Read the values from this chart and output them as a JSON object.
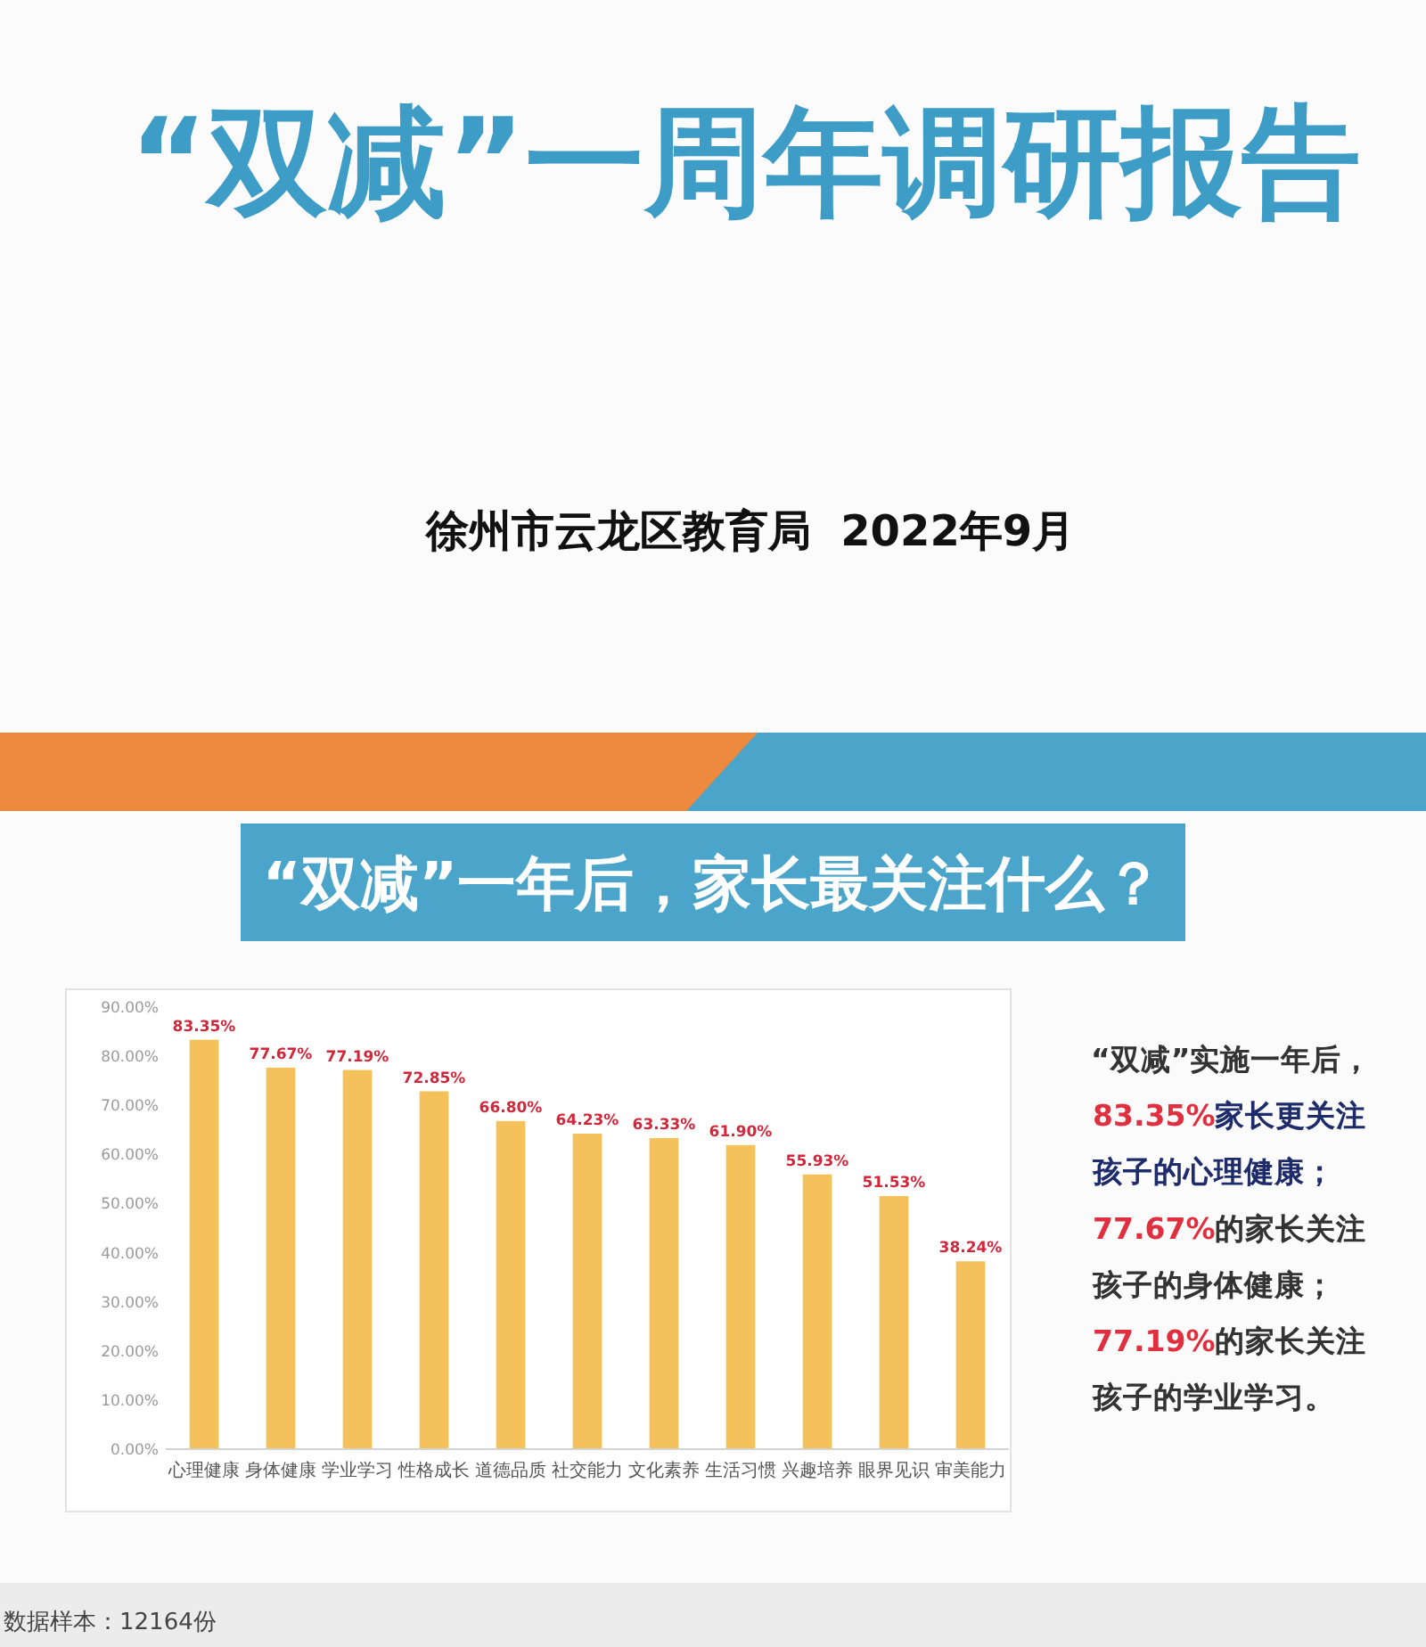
{
  "chart_data": {
    "type": "bar",
    "title": "“双减”一周年调研报告",
    "subtitle": "徐州市云龙区教育局  2022年9月",
    "categories": [
      "心理健康",
      "身体健康",
      "学业学习",
      "性格成长",
      "道德品质",
      "社交能力",
      "文化素养",
      "生活习惯",
      "兴趣培养",
      "眼界见识",
      "审美能力"
    ],
    "values": [
      83.35,
      77.67,
      77.19,
      72.85,
      66.8,
      64.23,
      63.33,
      61.9,
      55.93,
      51.53,
      38.24
    ],
    "color": "#f5c15a",
    "value_labels": [
      "83.35%",
      "77.67%",
      "77.19%",
      "72.85%",
      "66.80%",
      "64.23%",
      "63.33%",
      "61.90%",
      "55.93%",
      "51.53%",
      "38.24%"
    ],
    "ylim": [
      0,
      90
    ],
    "yticks": [
      {
        "value": 0,
        "label": "0.00%"
      },
      {
        "value": 10,
        "label": "10.00%"
      },
      {
        "value": 20,
        "label": "20.00%"
      },
      {
        "value": 30,
        "label": "30.00%"
      },
      {
        "value": 40,
        "label": "40.00%"
      },
      {
        "value": 50,
        "label": "50.00%"
      },
      {
        "value": 60,
        "label": "60.00%"
      },
      {
        "value": 70,
        "label": "70.00%"
      },
      {
        "value": 80,
        "label": "80.00%"
      },
      {
        "value": 90,
        "label": "90.00%"
      }
    ],
    "annotations": [
      "“双减”一年后，家长最关注什么？",
      "“双减”实施一年后，",
      "83.35%家长更关注",
      "孩子的心理健康；",
      "77.67%的家长关注",
      "孩子的身体健康；",
      "77.19%的家长关注",
      "孩子的学业学习。",
      "数据样本：12164份"
    ]
  }
}
